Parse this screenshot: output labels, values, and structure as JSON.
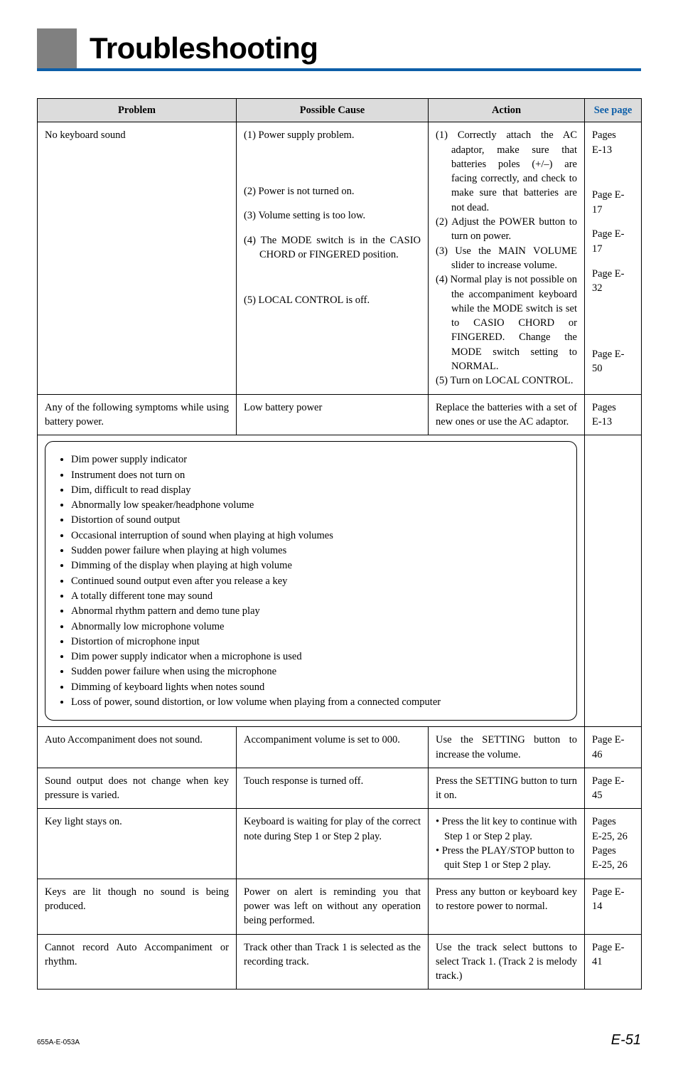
{
  "header": {
    "title": "Troubleshooting"
  },
  "columns": {
    "problem": "Problem",
    "cause": "Possible Cause",
    "action": "Action",
    "see": "See page"
  },
  "rows": [
    {
      "problem": "No keyboard sound",
      "causes": [
        "(1) Power supply problem.",
        "(2) Power is not turned on.",
        "(3) Volume setting is too low.",
        "(4) The MODE switch is in the CASIO CHORD or FINGERED position.",
        "(5) LOCAL CONTROL is off."
      ],
      "actions": [
        "(1) Correctly attach the AC adaptor, make sure that batteries poles (+/–) are facing correctly, and check to make sure that batteries are not dead.",
        "(2) Adjust the POWER button to turn on power.",
        "(3) Use the MAIN VOLUME slider to increase volume.",
        "(4) Normal play is not possible on the accompaniment keyboard while the MODE switch is set to CASIO CHORD or FINGERED. Change the MODE switch setting to NORMAL.",
        "(5) Turn on LOCAL CONTROL."
      ],
      "pages": [
        "Pages",
        "E-13",
        "Page E-17",
        "Page E-17",
        "Page E-32",
        "Page E-50"
      ]
    },
    {
      "problem": "Any of the following symptoms while using battery power.",
      "causes": [
        "Low battery power"
      ],
      "actions": [
        "Replace the batteries with a set of new ones or use the AC adaptor."
      ],
      "pages": [
        "Pages",
        "E-13"
      ]
    }
  ],
  "bullets": [
    "Dim power supply indicator",
    "Instrument does not turn on",
    "Dim, difficult to read display",
    "Abnormally low speaker/headphone volume",
    "Distortion of sound output",
    "Occasional interruption of sound when playing at high volumes",
    "Sudden power failure when playing at high volumes",
    "Dimming of the display when playing at high volume",
    "Continued sound output even after you release a key",
    "A totally different tone may sound",
    "Abnormal rhythm pattern and demo tune play",
    "Abnormally low microphone volume",
    "Distortion of microphone input",
    "Dim power supply indicator when a microphone is used",
    "Sudden power failure when using the microphone",
    "Dimming of keyboard lights when notes sound",
    "Loss of power, sound distortion, or low volume when playing from a connected computer"
  ],
  "rows2": [
    {
      "problem": "Auto Accompaniment does not sound.",
      "cause": "Accompaniment volume is set to 000.",
      "action": "Use the SETTING button to increase the volume.",
      "page": "Page E-46"
    },
    {
      "problem": "Sound output does not change when key pressure is varied.",
      "cause": "Touch response is turned off.",
      "action": "Press the SETTING button to turn it on.",
      "page": "Page E-45"
    },
    {
      "problem": "Key light stays on.",
      "cause": "Keyboard is waiting for play of the correct note during Step 1 or Step 2 play.",
      "action_lines": [
        "• Press the lit key to continue with Step 1 or Step 2 play.",
        "• Press the PLAY/STOP button to quit Step 1 or Step 2 play."
      ],
      "page_lines": [
        "Pages",
        "E-25, 26",
        "Pages",
        "E-25, 26"
      ]
    },
    {
      "problem": "Keys are lit though no sound is being produced.",
      "cause": "Power on alert is reminding you that power was left on without any operation being performed.",
      "action": "Press any button or keyboard key to restore power to normal.",
      "page": "Page E-14"
    },
    {
      "problem": "Cannot record Auto Accompaniment or rhythm.",
      "cause": "Track other than Track 1 is selected as the recording track.",
      "action": "Use the track select buttons to select Track 1. (Track 2 is melody track.)",
      "page": "Page E-41"
    }
  ],
  "footer": {
    "left": "655A-E-053A",
    "right": "E-51"
  }
}
